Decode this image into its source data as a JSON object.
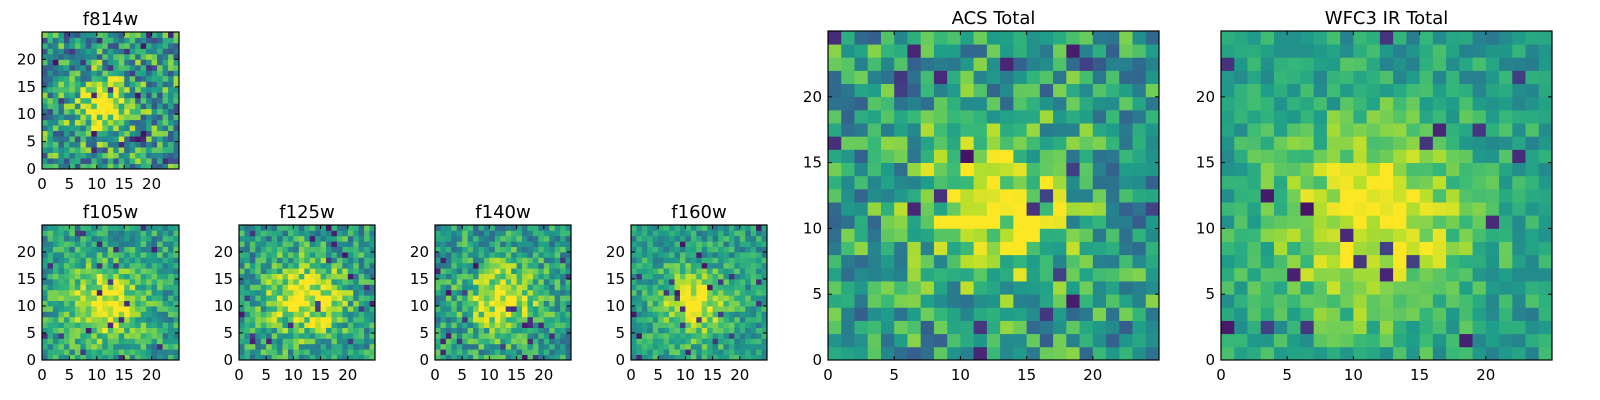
{
  "chart_data": [
    {
      "type": "heatmap",
      "title": "f814w",
      "xlim": [
        0,
        25
      ],
      "ylim": [
        0,
        25
      ],
      "xticks": [
        0,
        5,
        10,
        15,
        20
      ],
      "yticks": [
        0,
        5,
        10,
        15,
        20
      ],
      "colormap": "viridis",
      "peak": [
        11,
        11
      ],
      "width": 3.5,
      "noise": 0.55
    },
    {
      "type": "heatmap",
      "title": "f105w",
      "xlim": [
        0,
        25
      ],
      "ylim": [
        0,
        25
      ],
      "xticks": [
        0,
        5,
        10,
        15,
        20
      ],
      "yticks": [
        0,
        5,
        10,
        15,
        20
      ],
      "colormap": "viridis",
      "peak": [
        11,
        10
      ],
      "width": 5,
      "noise": 0.35
    },
    {
      "type": "heatmap",
      "title": "f125w",
      "xlim": [
        0,
        25
      ],
      "ylim": [
        0,
        25
      ],
      "xticks": [
        0,
        5,
        10,
        15,
        20
      ],
      "yticks": [
        0,
        5,
        10,
        15,
        20
      ],
      "colormap": "viridis",
      "peak": [
        12,
        11
      ],
      "width": 5,
      "noise": 0.4
    },
    {
      "type": "heatmap",
      "title": "f140w",
      "xlim": [
        0,
        25
      ],
      "ylim": [
        0,
        25
      ],
      "xticks": [
        0,
        5,
        10,
        15,
        20
      ],
      "yticks": [
        0,
        5,
        10,
        15,
        20
      ],
      "colormap": "viridis",
      "peak": [
        12,
        11
      ],
      "width": 4.5,
      "noise": 0.38
    },
    {
      "type": "heatmap",
      "title": "f160w",
      "xlim": [
        0,
        25
      ],
      "ylim": [
        0,
        25
      ],
      "xticks": [
        0,
        5,
        10,
        15,
        20
      ],
      "yticks": [
        0,
        5,
        10,
        15,
        20
      ],
      "colormap": "viridis",
      "peak": [
        11,
        10
      ],
      "width": 4.5,
      "noise": 0.3
    },
    {
      "type": "heatmap",
      "title": "ACS Total",
      "xlim": [
        0,
        25
      ],
      "ylim": [
        0,
        25
      ],
      "xticks": [
        0,
        5,
        10,
        15,
        20
      ],
      "yticks": [
        0,
        5,
        10,
        15,
        20
      ],
      "colormap": "viridis",
      "peak": [
        12,
        11
      ],
      "width": 4,
      "noise": 0.45
    },
    {
      "type": "heatmap",
      "title": "WFC3 IR Total",
      "xlim": [
        0,
        25
      ],
      "ylim": [
        0,
        25
      ],
      "xticks": [
        0,
        5,
        10,
        15,
        20
      ],
      "yticks": [
        0,
        5,
        10,
        15,
        20
      ],
      "colormap": "viridis",
      "peak": [
        11,
        10
      ],
      "width": 5.5,
      "noise": 0.25
    }
  ]
}
